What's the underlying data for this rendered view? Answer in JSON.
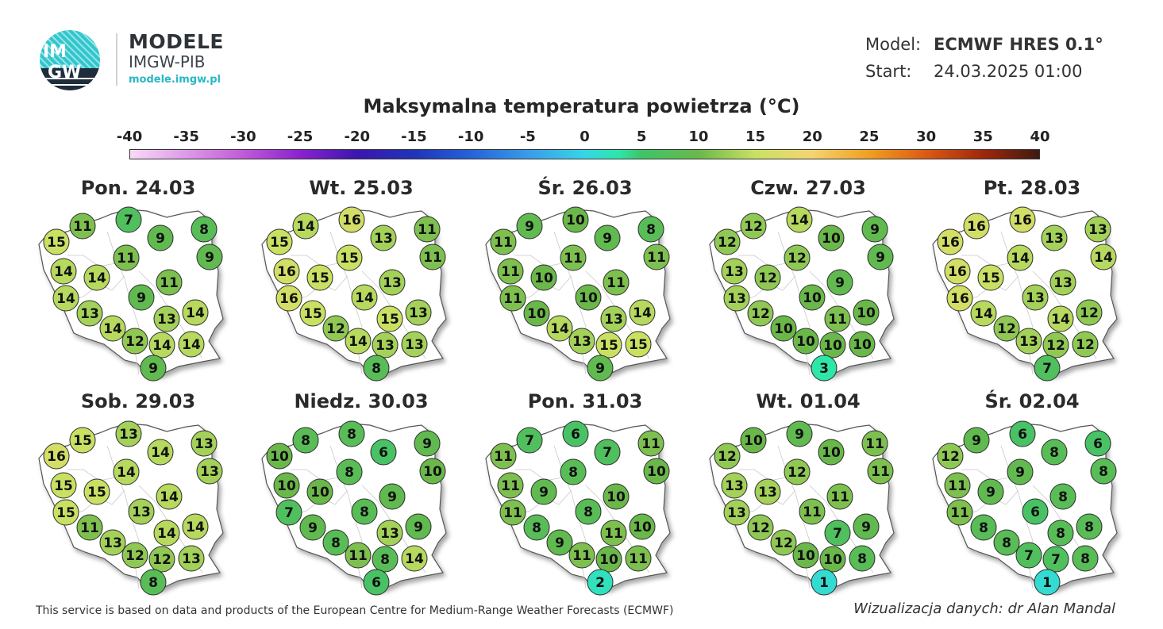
{
  "logo": {
    "text_top": "IM",
    "text_bottom": "GW"
  },
  "brand": {
    "title": "MODELE",
    "subtitle": "IMGW-PIB",
    "url": "modele.imgw.pl"
  },
  "model_info": {
    "model_label": "Model:",
    "model_value": "ECMWF HRES 0.1°",
    "start_label": "Start:",
    "start_value": "24.03.2025 01:00"
  },
  "title": "Maksymalna temperatura powietrza (°C)",
  "scale": {
    "ticks": [
      "-40",
      "-35",
      "-30",
      "-25",
      "-20",
      "-15",
      "-10",
      "-5",
      "0",
      "5",
      "10",
      "15",
      "20",
      "25",
      "30",
      "35",
      "40"
    ],
    "min": -40,
    "max": 40,
    "stops": [
      {
        "t": -40,
        "c": "#f9d9f6"
      },
      {
        "t": -30,
        "c": "#c05ad8"
      },
      {
        "t": -25,
        "c": "#8a21d0"
      },
      {
        "t": -20,
        "c": "#3b16b0"
      },
      {
        "t": -15,
        "c": "#2034b8"
      },
      {
        "t": -10,
        "c": "#2563d8"
      },
      {
        "t": -5,
        "c": "#3a9bea"
      },
      {
        "t": 0,
        "c": "#36d6e6"
      },
      {
        "t": 3,
        "c": "#2ee6a8"
      },
      {
        "t": 5,
        "c": "#3fc46a"
      },
      {
        "t": 10,
        "c": "#6ab84a"
      },
      {
        "t": 15,
        "c": "#c9e163"
      },
      {
        "t": 20,
        "c": "#f5d470"
      },
      {
        "t": 25,
        "c": "#f0a020"
      },
      {
        "t": 30,
        "c": "#dc5a14"
      },
      {
        "t": 35,
        "c": "#a0280c"
      },
      {
        "t": 40,
        "c": "#3e1a12"
      }
    ]
  },
  "days": [
    {
      "label": "Pon. 24.03",
      "values": [
        15,
        11,
        7,
        9,
        8,
        9,
        14,
        14,
        11,
        11,
        14,
        9,
        13,
        14,
        13,
        14,
        12,
        14,
        14,
        9
      ]
    },
    {
      "label": "Wt. 25.03",
      "values": [
        15,
        14,
        16,
        13,
        11,
        11,
        16,
        15,
        15,
        13,
        16,
        14,
        15,
        13,
        15,
        12,
        14,
        13,
        13,
        8
      ]
    },
    {
      "label": "Śr. 26.03",
      "values": [
        11,
        9,
        10,
        9,
        8,
        11,
        11,
        10,
        11,
        11,
        11,
        10,
        10,
        14,
        13,
        14,
        13,
        15,
        15,
        9
      ]
    },
    {
      "label": "Czw. 27.03",
      "values": [
        12,
        12,
        14,
        10,
        9,
        9,
        13,
        12,
        12,
        9,
        13,
        10,
        12,
        10,
        11,
        10,
        10,
        10,
        10,
        3
      ]
    },
    {
      "label": "Pt. 28.03",
      "values": [
        16,
        16,
        16,
        13,
        13,
        14,
        16,
        15,
        14,
        13,
        16,
        13,
        14,
        12,
        14,
        12,
        13,
        12,
        12,
        7
      ]
    },
    {
      "label": "Sob. 29.03",
      "values": [
        16,
        15,
        13,
        14,
        13,
        13,
        15,
        15,
        14,
        14,
        15,
        13,
        11,
        14,
        14,
        13,
        12,
        12,
        13,
        8
      ]
    },
    {
      "label": "Niedz. 30.03",
      "values": [
        10,
        8,
        8,
        6,
        9,
        10,
        10,
        10,
        8,
        9,
        7,
        8,
        9,
        9,
        13,
        8,
        11,
        8,
        14,
        6
      ]
    },
    {
      "label": "Pon. 31.03",
      "values": [
        11,
        7,
        6,
        7,
        11,
        10,
        11,
        9,
        8,
        10,
        11,
        8,
        8,
        10,
        11,
        9,
        11,
        10,
        11,
        2
      ]
    },
    {
      "label": "Wt. 01.04",
      "values": [
        12,
        10,
        9,
        10,
        11,
        11,
        13,
        13,
        12,
        11,
        13,
        11,
        12,
        9,
        7,
        12,
        10,
        10,
        8,
        1
      ]
    },
    {
      "label": "Śr. 02.04",
      "values": [
        12,
        9,
        6,
        8,
        6,
        8,
        11,
        9,
        9,
        8,
        11,
        6,
        8,
        8,
        8,
        8,
        7,
        7,
        8,
        1
      ]
    }
  ],
  "footer": {
    "source": "This service is based on data and products of the European Centre for Medium-Range Weather Forecasts (ECMWF)",
    "credit": "Wizualizacja danych: dr Alan Mandal"
  }
}
